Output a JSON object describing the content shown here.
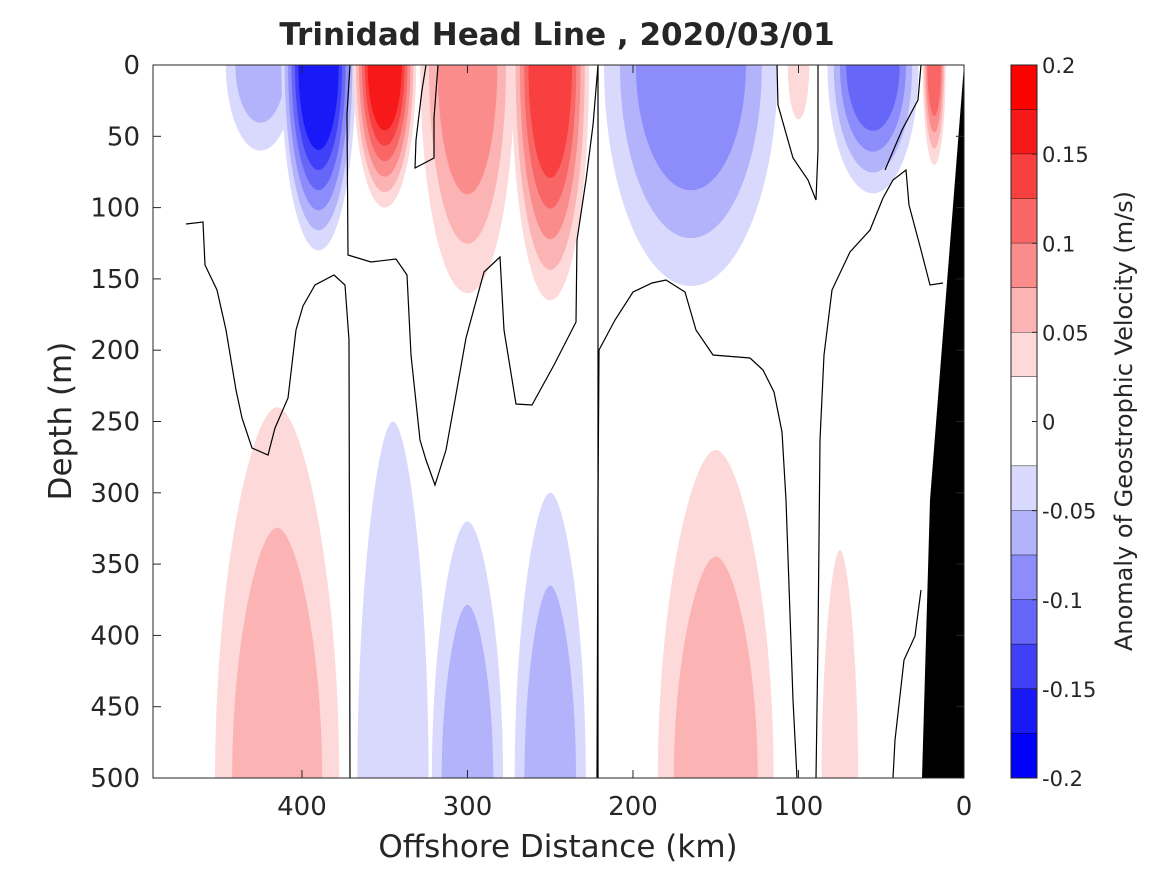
{
  "chart_data": {
    "type": "contour",
    "title": "Trinidad Head Line , 2020/03/01",
    "xlabel": "Offshore Distance (km)",
    "ylabel": "Depth (m)",
    "xlim": [
      490,
      0
    ],
    "ylim": [
      0,
      500
    ],
    "x_ticks": [
      400,
      300,
      200,
      100,
      0
    ],
    "y_ticks": [
      0,
      50,
      100,
      150,
      200,
      250,
      300,
      350,
      400,
      450,
      500
    ],
    "colorbar": {
      "label": "Anomaly of Geostrophic Velocity (m/s)",
      "range": [
        -0.2,
        0.2
      ],
      "step": 0.025,
      "tick_values": [
        0.2,
        0.15,
        0.1,
        0.05,
        0,
        -0.05,
        -0.1,
        -0.15,
        -0.2
      ],
      "tick_labels": [
        "0.2",
        "0.15",
        "0.1",
        "0.05",
        "0",
        "-0.05",
        "-0.1",
        "-0.15",
        "-0.2"
      ],
      "negative_colors": [
        "#d9d9fd",
        "#b3b3fc",
        "#8c8cfa",
        "#6666f9",
        "#4040f8",
        "#1919f7",
        "#0000ff"
      ],
      "positive_colors": [
        "#fdd9d9",
        "#fcb3b3",
        "#fa8c8c",
        "#f96666",
        "#f84040",
        "#f71919",
        "#ff0000"
      ]
    },
    "bathymetry_color": "#000000",
    "features": [
      {
        "sign": "-",
        "x": 425,
        "depth": [
          0,
          60
        ],
        "x_width": [
          450,
          408
        ],
        "peak": -0.05
      },
      {
        "sign": "-",
        "x": 390,
        "depth": [
          0,
          130
        ],
        "x_width": [
          415,
          370
        ],
        "peak": -0.15
      },
      {
        "sign": "+",
        "x": 350,
        "depth": [
          0,
          100
        ],
        "x_width": [
          368,
          330
        ],
        "peak": 0.15
      },
      {
        "sign": "+",
        "x": 300,
        "depth": [
          0,
          160
        ],
        "x_width": [
          325,
          268
        ],
        "peak": 0.075
      },
      {
        "sign": "+",
        "x": 250,
        "depth": [
          0,
          165
        ],
        "x_width": [
          272,
          225
        ],
        "peak": 0.125
      },
      {
        "sign": "-",
        "x": 165,
        "depth": [
          0,
          155
        ],
        "x_width": [
          215,
          110
        ],
        "peak": -0.075
      },
      {
        "sign": "+",
        "x": 100,
        "depth": [
          0,
          38
        ],
        "x_width": [
          107,
          94
        ],
        "peak": 0.025
      },
      {
        "sign": "-",
        "x": 55,
        "depth": [
          0,
          90
        ],
        "x_width": [
          85,
          30
        ],
        "peak": -0.1
      },
      {
        "sign": "+",
        "x": 18,
        "depth": [
          0,
          70
        ],
        "x_width": [
          25,
          11
        ],
        "peak": 0.1
      },
      {
        "sign": "+",
        "x": 415,
        "depth": [
          240,
          500
        ],
        "x_width": [
          450,
          375
        ],
        "peak": 0.05
      },
      {
        "sign": "-",
        "x": 345,
        "depth": [
          250,
          500
        ],
        "x_width": [
          368,
          325
        ],
        "peak": -0.025
      },
      {
        "sign": "-",
        "x": 300,
        "depth": [
          320,
          500
        ],
        "x_width": [
          318,
          275
        ],
        "peak": -0.05
      },
      {
        "sign": "-",
        "x": 250,
        "depth": [
          300,
          500
        ],
        "x_width": [
          268,
          225
        ],
        "peak": -0.05
      },
      {
        "sign": "+",
        "x": 150,
        "depth": [
          270,
          500
        ],
        "x_width": [
          183,
          113
        ],
        "peak": 0.05
      },
      {
        "sign": "+",
        "x": 75,
        "depth": [
          340,
          500
        ],
        "x_width": [
          87,
          65
        ],
        "peak": 0.025
      }
    ]
  }
}
